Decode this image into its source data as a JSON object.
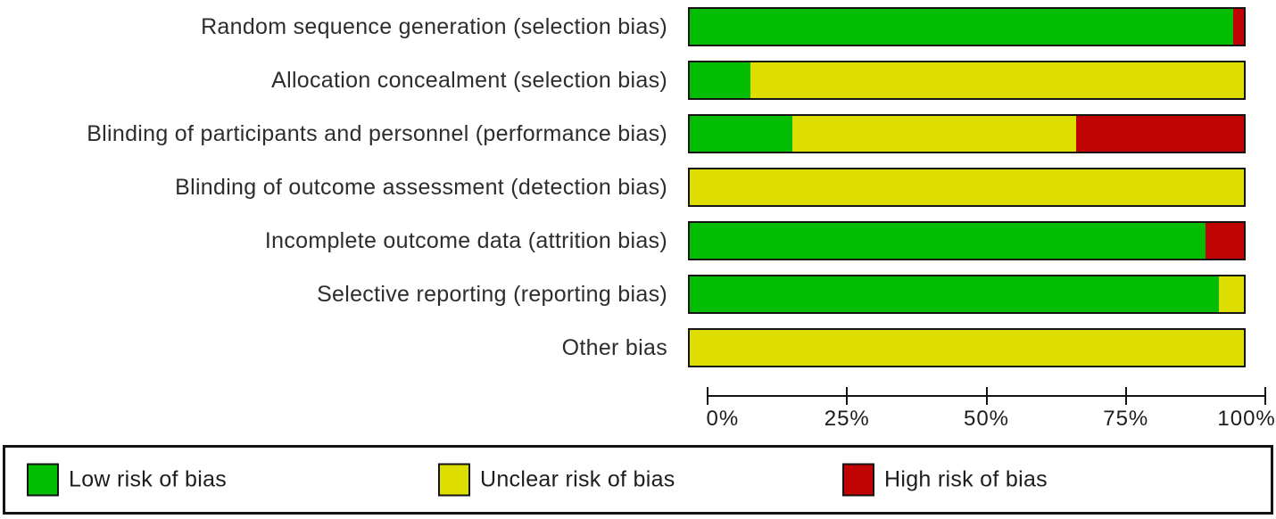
{
  "chart_data": {
    "type": "bar",
    "orientation": "horizontal",
    "stacked": true,
    "categories": [
      "Random sequence generation (selection bias)",
      "Allocation concealment (selection bias)",
      "Blinding of participants and personnel (performance bias)",
      "Blinding of outcome assessment (detection bias)",
      "Incomplete outcome data (attrition bias)",
      "Selective reporting (reporting bias)",
      "Other bias"
    ],
    "series": [
      {
        "key": "low",
        "name": "Low risk of bias",
        "color": "#02bd02",
        "values": [
          98,
          11,
          18.5,
          0,
          93,
          95.5,
          0
        ]
      },
      {
        "key": "unclear",
        "name": "Unclear risk of bias",
        "color": "#dede00",
        "values": [
          0,
          89,
          51.2,
          100,
          0,
          4.5,
          100
        ]
      },
      {
        "key": "high",
        "name": "High risk of bias",
        "color": "#c00404",
        "values": [
          2,
          0,
          30.3,
          0,
          7,
          0,
          0
        ]
      }
    ],
    "x_ticks": [
      "0%",
      "25%",
      "50%",
      "75%",
      "100%"
    ],
    "xlim": [
      0,
      100
    ],
    "grid": false,
    "legend_position": "bottom",
    "legend": [
      "Low risk of bias",
      "Unclear risk of bias",
      "High risk of bias"
    ]
  },
  "colors": {
    "low": "#02bd02",
    "unclear": "#dede00",
    "high": "#c00404",
    "border": "#141414"
  }
}
